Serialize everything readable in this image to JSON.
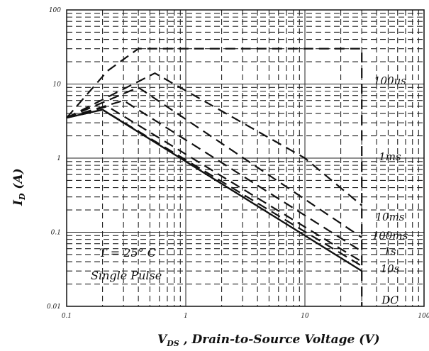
{
  "chart_data": {
    "type": "line",
    "title": "",
    "xlabel": {
      "main": "V",
      "sub": "DS",
      "rest": " , Drain-to-Source Voltage (V)"
    },
    "ylabel": {
      "main": "I",
      "sub": "D",
      "rest": " (A)"
    },
    "x_scale": "log",
    "y_scale": "log",
    "xlim": [
      0.1,
      100
    ],
    "ylim": [
      0.01,
      100
    ],
    "x_ticks": [
      "0.1",
      "1",
      "10",
      "100"
    ],
    "y_ticks": [
      "0.01",
      "0.1",
      "1",
      "10",
      "100"
    ],
    "grid": true,
    "annotations": {
      "conditions": "T  = 25° C",
      "pulse": "Single  Pulse"
    },
    "series": [
      {
        "name": "100us",
        "style": "dashed",
        "x": [
          0.1,
          0.22,
          0.4,
          1.0,
          30,
          30
        ],
        "y": [
          3.5,
          15,
          30,
          30,
          30,
          0.01
        ]
      },
      {
        "name": "1ms",
        "style": "dashed",
        "x": [
          0.1,
          0.55,
          10,
          30
        ],
        "y": [
          3.5,
          14,
          1.0,
          0.23
        ]
      },
      {
        "name": "10ms",
        "style": "dashed",
        "x": [
          0.1,
          0.4,
          30
        ],
        "y": [
          3.5,
          9,
          0.085
        ]
      },
      {
        "name": "100ms",
        "style": "dashed",
        "x": [
          0.1,
          0.3,
          30
        ],
        "y": [
          3.5,
          6,
          0.055
        ]
      },
      {
        "name": "1s",
        "style": "dashed",
        "x": [
          0.1,
          0.22,
          30
        ],
        "y": [
          3.5,
          5,
          0.04
        ]
      },
      {
        "name": "10s",
        "style": "dashed",
        "x": [
          0.1,
          0.2,
          30
        ],
        "y": [
          3.5,
          4.5,
          0.035
        ]
      },
      {
        "name": "DC",
        "style": "solid",
        "x": [
          0.1,
          0.2,
          30
        ],
        "y": [
          3.5,
          4.5,
          0.03
        ]
      }
    ],
    "series_labels": [
      "100us",
      "1ms",
      "10ms",
      "100ms",
      "1s",
      "10s",
      "DC"
    ]
  }
}
